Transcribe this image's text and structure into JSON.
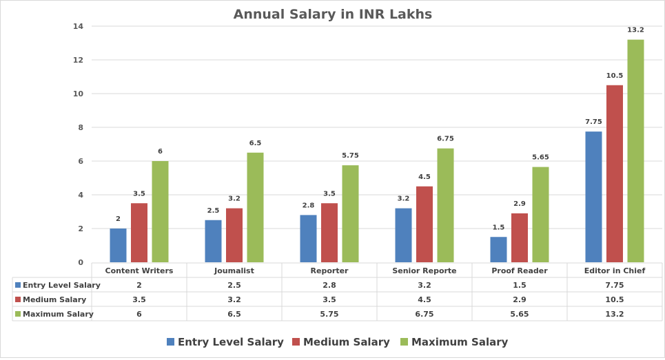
{
  "chart_data": {
    "type": "bar",
    "title": "Annual Salary in INR Lakhs",
    "xlabel": "",
    "ylabel": "",
    "ylim": [
      0,
      14
    ],
    "yticks": [
      "0",
      "2",
      "4",
      "6",
      "8",
      "10",
      "12",
      "14"
    ],
    "ytick_values": [
      0,
      2,
      4,
      6,
      8,
      10,
      12,
      14
    ],
    "grid": true,
    "legend_position": "bottom",
    "categories": [
      "Content Writers",
      "Joumalist",
      "Reporter",
      "Senior Reporte",
      "Proof Reader",
      "Editor in Chief"
    ],
    "series": [
      {
        "name": "Entry Level Salary",
        "color": "#4f81bd",
        "values": [
          2,
          2.5,
          2.8,
          3.2,
          1.5,
          7.75
        ],
        "labels": [
          "2",
          "2.5",
          "2.8",
          "3.2",
          "1.5",
          "7.75"
        ]
      },
      {
        "name": "Medium Salary",
        "color": "#c0504d",
        "values": [
          3.5,
          3.2,
          3.5,
          4.5,
          2.9,
          10.5
        ],
        "labels": [
          "3.5",
          "3.2",
          "3.5",
          "4.5",
          "2.9",
          "10.5"
        ]
      },
      {
        "name": "Maximum Salary",
        "color": "#9bbb59",
        "values": [
          6,
          6.5,
          5.75,
          6.75,
          5.65,
          13.2
        ],
        "labels": [
          "6",
          "6.5",
          "5.75",
          "6.75",
          "5.65",
          "13.2"
        ]
      }
    ],
    "data_table": true
  }
}
